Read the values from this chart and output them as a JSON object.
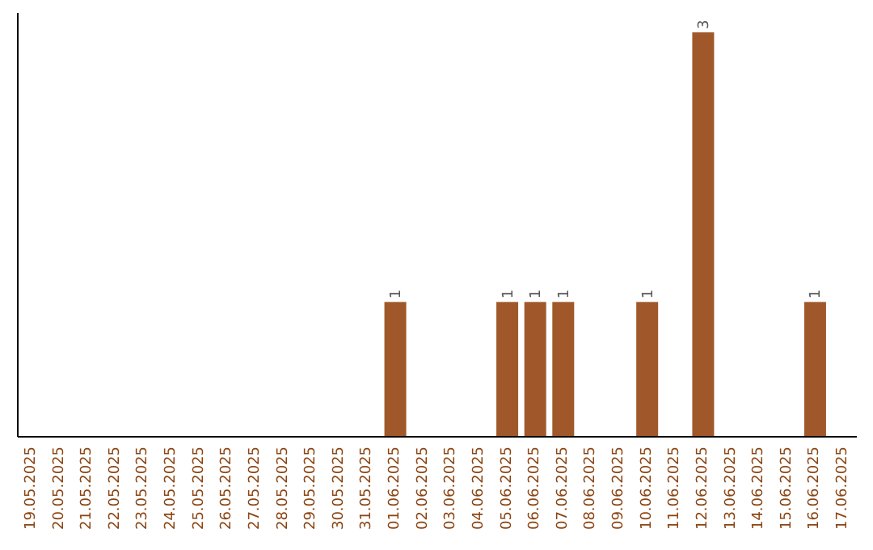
{
  "chart_data": {
    "type": "bar",
    "categories": [
      "19.05.2025",
      "20.05.2025",
      "21.05.2025",
      "22.05.2025",
      "23.05.2025",
      "24.05.2025",
      "25.05.2025",
      "26.05.2025",
      "27.05.2025",
      "28.05.2025",
      "29.05.2025",
      "30.05.2025",
      "31.05.2025",
      "01.06.2025",
      "02.06.2025",
      "03.06.2025",
      "04.06.2025",
      "05.06.2025",
      "06.06.2025",
      "07.06.2025",
      "08.06.2025",
      "09.06.2025",
      "10.06.2025",
      "11.06.2025",
      "12.06.2025",
      "13.06.2025",
      "14.06.2025",
      "15.06.2025",
      "16.06.2025",
      "17.06.2025"
    ],
    "values": [
      null,
      null,
      null,
      null,
      null,
      null,
      null,
      null,
      null,
      null,
      null,
      null,
      null,
      1,
      null,
      null,
      null,
      1,
      1,
      1,
      null,
      null,
      1,
      null,
      3,
      null,
      null,
      null,
      1,
      null
    ],
    "color": "#a0582a",
    "data_labels": true
  }
}
